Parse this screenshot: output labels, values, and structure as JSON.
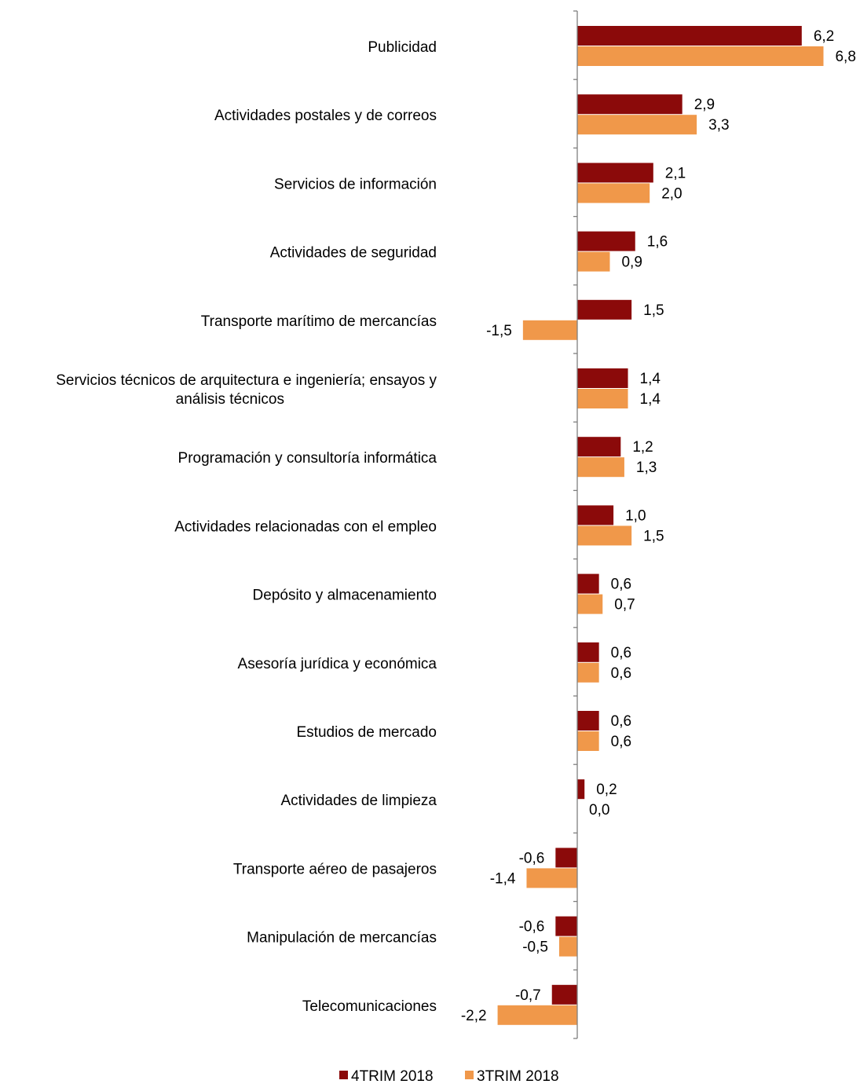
{
  "chart_data": {
    "type": "bar",
    "orientation": "horizontal",
    "categories": [
      "Publicidad",
      "Actividades postales y de correos",
      "Servicios de información",
      "Actividades de seguridad",
      "Transporte marítimo de mercancías",
      "Servicios técnicos de arquitectura e ingeniería; ensayos y análisis técnicos",
      "Programación y consultoría informática",
      "Actividades relacionadas con el empleo",
      "Depósito y almacenamiento",
      "Asesoría jurídica y económica",
      "Estudios de mercado",
      "Actividades de limpieza",
      "Transporte aéreo de pasajeros",
      "Manipulación de mercancías",
      "Telecomunicaciones"
    ],
    "category_lines": [
      [
        "Publicidad"
      ],
      [
        "Actividades postales y de correos"
      ],
      [
        "Servicios de información"
      ],
      [
        "Actividades de seguridad"
      ],
      [
        "Transporte marítimo de mercancías"
      ],
      [
        "Servicios técnicos de arquitectura e ingeniería; ensayos y",
        "análisis técnicos"
      ],
      [
        "Programación y consultoría informática"
      ],
      [
        "Actividades relacionadas con el empleo"
      ],
      [
        "Depósito y almacenamiento"
      ],
      [
        "Asesoría jurídica y económica"
      ],
      [
        "Estudios de mercado"
      ],
      [
        "Actividades de limpieza"
      ],
      [
        "Transporte aéreo de pasajeros"
      ],
      [
        "Manipulación de mercancías"
      ],
      [
        "Telecomunicaciones"
      ]
    ],
    "series": [
      {
        "name": "4TRIM 2018",
        "color": "#8b0a0a",
        "values": [
          6.2,
          2.9,
          2.1,
          1.6,
          1.5,
          1.4,
          1.2,
          1.0,
          0.6,
          0.6,
          0.6,
          0.2,
          -0.6,
          -0.6,
          -0.7
        ],
        "labels": [
          "6,2",
          "2,9",
          "2,1",
          "1,6",
          "1,5",
          "1,4",
          "1,2",
          "1,0",
          "0,6",
          "0,6",
          "0,6",
          "0,2",
          "-0,6",
          "-0,6",
          "-0,7"
        ]
      },
      {
        "name": "3TRIM 2018",
        "color": "#f0984a",
        "values": [
          6.8,
          3.3,
          2.0,
          0.9,
          -1.5,
          1.4,
          1.3,
          1.5,
          0.7,
          0.6,
          0.6,
          0.0,
          -1.4,
          -0.5,
          -2.2
        ],
        "labels": [
          "6,8",
          "3,3",
          "2,0",
          "0,9",
          "-1,5",
          "1,4",
          "1,3",
          "1,5",
          "0,7",
          "0,6",
          "0,6",
          "0,0",
          "-1,4",
          "-0,5",
          "-2,2"
        ]
      }
    ],
    "xlim": [
      -2.2,
      6.8
    ],
    "grid": false,
    "legend_position": "bottom",
    "axis_color": "#7f7f7f"
  }
}
